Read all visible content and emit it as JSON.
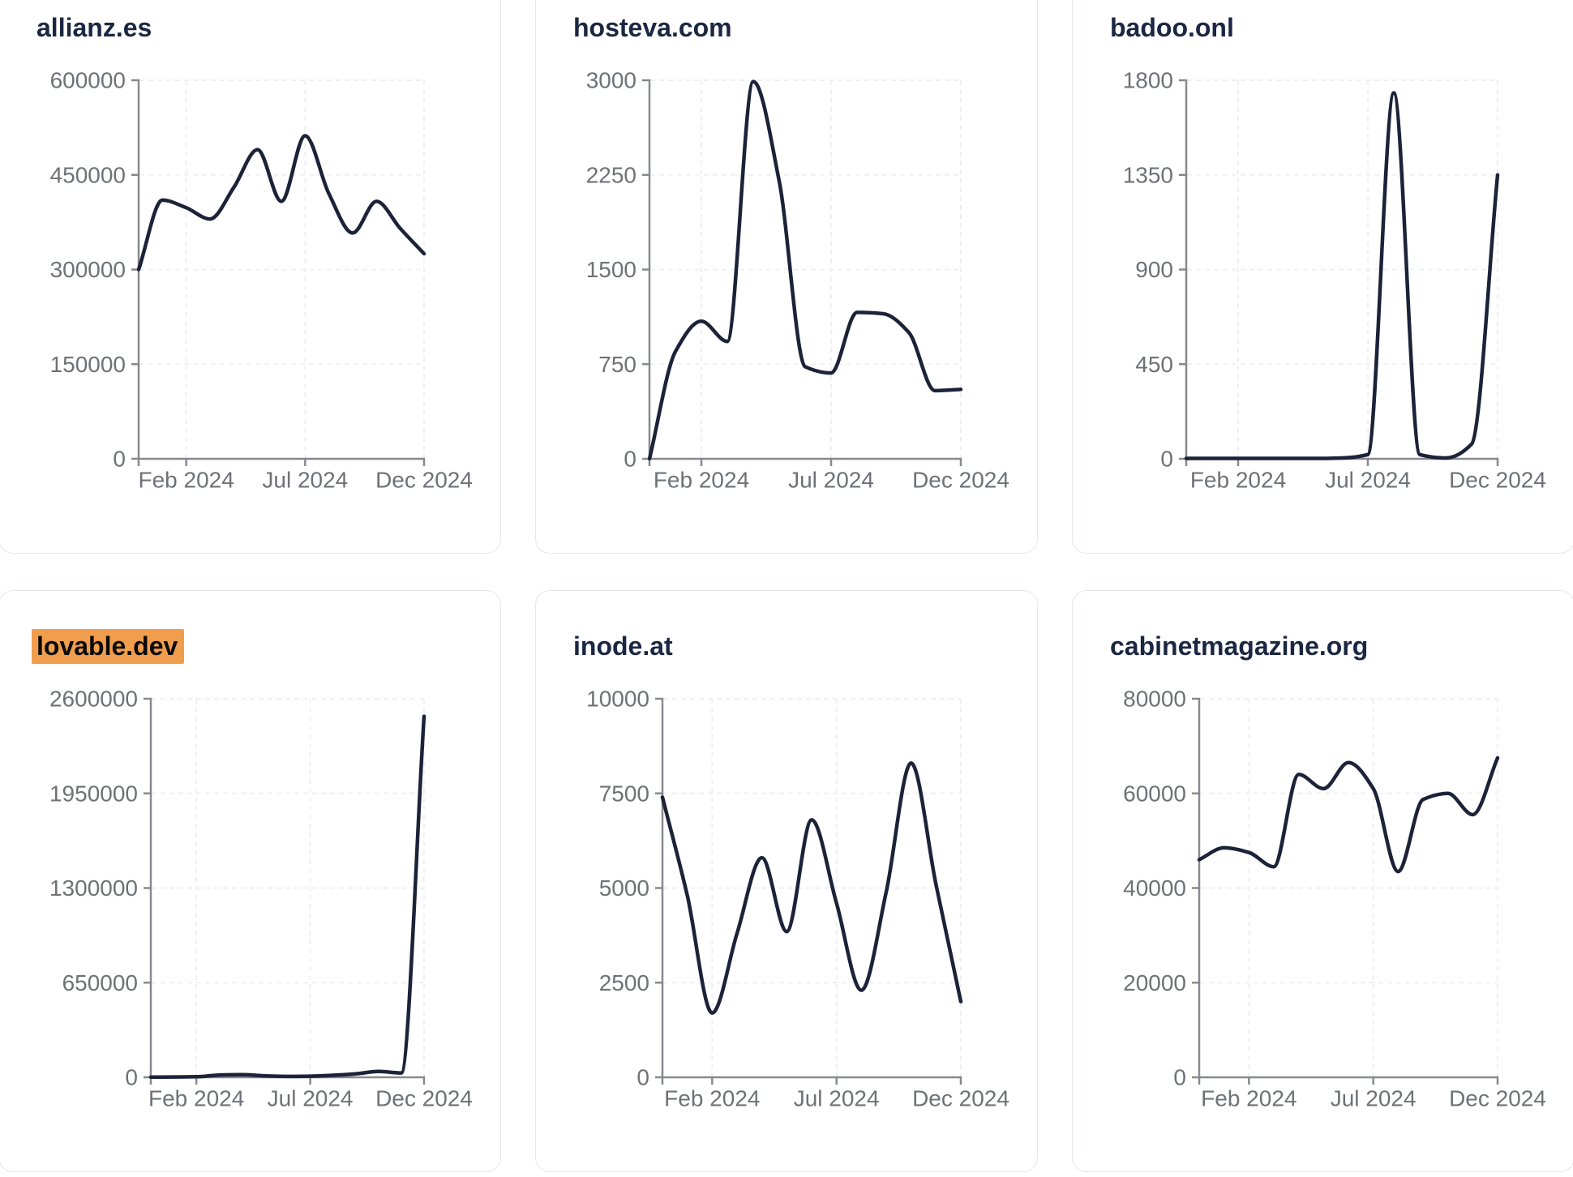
{
  "page": {
    "background": "#ffffff",
    "x_axis_tick_labels": [
      "Feb 2024",
      "Jul 2024",
      "Dec 2024"
    ]
  },
  "style": {
    "series_line_color": "#1c2339",
    "title_color": "#1b2742",
    "highlight_color": "#f09d4e",
    "highlight_text_color": "#0a0a0a",
    "tick_label_color": "#6e7177",
    "axis_color": "#87898e",
    "grid_color": "#eff0f4",
    "card_border_color": "#e4e7ef"
  },
  "chart_data": [
    {
      "type": "line",
      "title": "allianz.es",
      "highlighted": false,
      "legend": "none",
      "grid": true,
      "ylim": [
        0,
        600000
      ],
      "y_ticks": [
        0,
        150000,
        300000,
        450000,
        600000
      ],
      "x_tick_labels": [
        "Feb 2024",
        "Jul 2024",
        "Dec 2024"
      ],
      "x_tick_indices": [
        2,
        7,
        12
      ],
      "values": [
        300000,
        410000,
        398000,
        380000,
        430000,
        490000,
        408000,
        512000,
        420000,
        358000,
        408000,
        365000,
        325000
      ]
    },
    {
      "type": "line",
      "title": "hosteva.com",
      "highlighted": false,
      "legend": "none",
      "grid": true,
      "ylim": [
        0,
        3000
      ],
      "y_ticks": [
        0,
        750,
        1500,
        2250,
        3000
      ],
      "x_tick_labels": [
        "Feb 2024",
        "Jul 2024",
        "Dec 2024"
      ],
      "x_tick_indices": [
        2,
        7,
        12
      ],
      "values": [
        0,
        850,
        1090,
        930,
        2990,
        2200,
        730,
        680,
        1160,
        1150,
        1000,
        540,
        550
      ]
    },
    {
      "type": "line",
      "title": "badoo.onl",
      "highlighted": false,
      "legend": "none",
      "grid": true,
      "ylim": [
        0,
        1800
      ],
      "y_ticks": [
        0,
        450,
        900,
        1350,
        1800
      ],
      "x_tick_labels": [
        "Feb 2024",
        "Jul 2024",
        "Dec 2024"
      ],
      "x_tick_indices": [
        2,
        7,
        12
      ],
      "values": [
        2,
        2,
        2,
        2,
        2,
        2,
        4,
        20,
        1740,
        20,
        4,
        70,
        1350
      ]
    },
    {
      "type": "line",
      "title": "lovable.dev",
      "highlighted": true,
      "legend": "none",
      "grid": true,
      "ylim": [
        0,
        2600000
      ],
      "y_ticks": [
        0,
        650000,
        1300000,
        1950000,
        2600000
      ],
      "x_tick_labels": [
        "Feb 2024",
        "Jul 2024",
        "Dec 2024"
      ],
      "x_tick_indices": [
        2,
        7,
        12
      ],
      "values": [
        1000,
        2000,
        4000,
        15000,
        18000,
        10000,
        6000,
        8000,
        14000,
        24000,
        40000,
        30000,
        2480000
      ]
    },
    {
      "type": "line",
      "title": "inode.at",
      "highlighted": false,
      "legend": "none",
      "grid": true,
      "ylim": [
        0,
        10000
      ],
      "y_ticks": [
        0,
        2500,
        5000,
        7500,
        10000
      ],
      "x_tick_labels": [
        "Feb 2024",
        "Jul 2024",
        "Dec 2024"
      ],
      "x_tick_indices": [
        2,
        7,
        12
      ],
      "values": [
        7400,
        4800,
        1700,
        3800,
        5800,
        3850,
        6800,
        4600,
        2300,
        4900,
        8300,
        5100,
        2000
      ]
    },
    {
      "type": "line",
      "title": "cabinetmagazine.org",
      "highlighted": false,
      "legend": "none",
      "grid": true,
      "ylim": [
        0,
        80000
      ],
      "y_ticks": [
        0,
        20000,
        40000,
        60000,
        80000
      ],
      "x_tick_labels": [
        "Feb 2024",
        "Jul 2024",
        "Dec 2024"
      ],
      "x_tick_indices": [
        2,
        7,
        12
      ],
      "values": [
        46000,
        48500,
        47500,
        44500,
        64000,
        61000,
        66500,
        61000,
        43500,
        58700,
        60000,
        55500,
        67500
      ]
    }
  ]
}
